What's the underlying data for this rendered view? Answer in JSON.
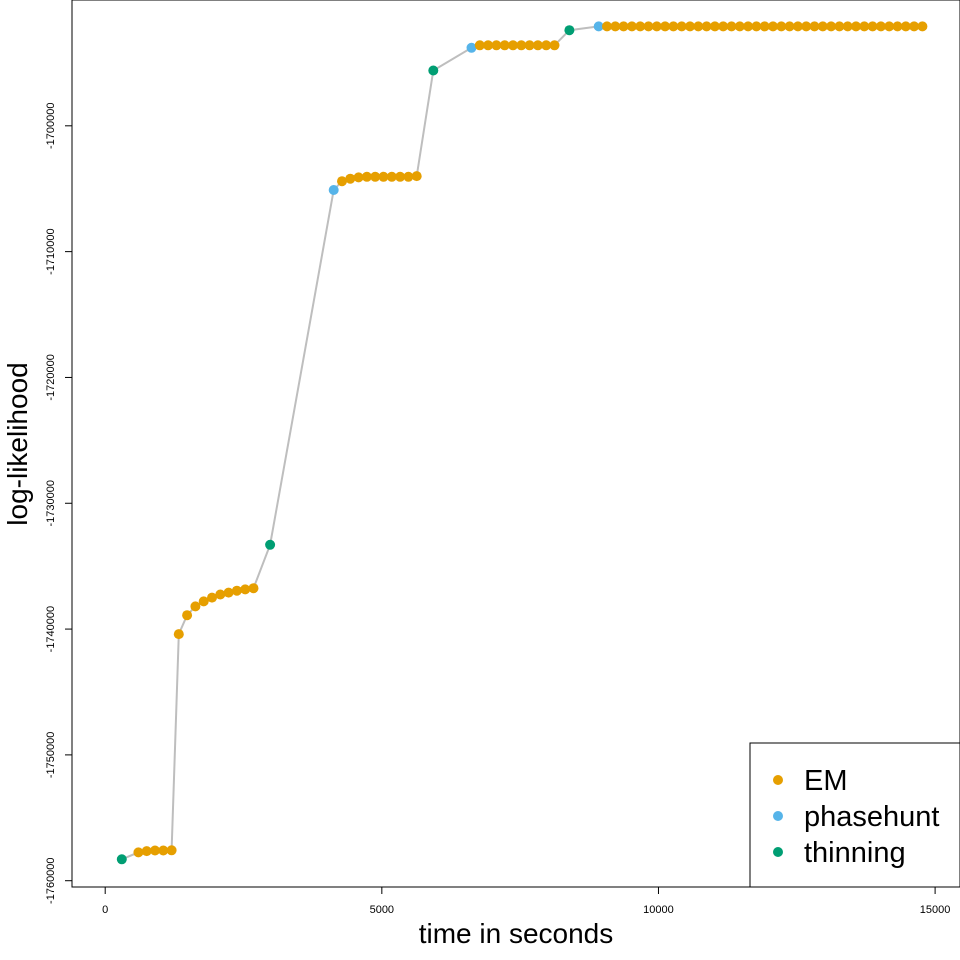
{
  "chart_data": {
    "type": "scatter",
    "xlabel": "time in seconds",
    "ylabel": "log-likelihood",
    "xlim": [
      -600,
      15450
    ],
    "ylim": [
      -1760500,
      -1690000
    ],
    "x_ticks": [
      0,
      5000,
      10000,
      15000
    ],
    "x_tick_labels": [
      "0",
      "5000",
      "10000",
      "15000"
    ],
    "y_ticks": [
      -1700000,
      -1710000,
      -1720000,
      -1730000,
      -1740000,
      -1750000,
      -1760000
    ],
    "y_tick_labels": [
      "-1700000",
      "-1710000",
      "-1720000",
      "-1730000",
      "-1740000",
      "-1750000",
      "-1760000"
    ],
    "grid": false,
    "legend_position": "bottom-right",
    "colors": {
      "EM": "#E69F00",
      "phasehunt": "#56B4E9",
      "thinning": "#009E73",
      "line": "#BEBEBE"
    },
    "legend": [
      {
        "name": "EM",
        "color": "#E69F00"
      },
      {
        "name": "phasehunt",
        "color": "#56B4E9"
      },
      {
        "name": "thinning",
        "color": "#009E73"
      }
    ],
    "points": [
      {
        "x": 300,
        "y": -1758300,
        "s": "thinning"
      },
      {
        "x": 600,
        "y": -1757750,
        "s": "EM"
      },
      {
        "x": 750,
        "y": -1757650,
        "s": "EM"
      },
      {
        "x": 900,
        "y": -1757600,
        "s": "EM"
      },
      {
        "x": 1050,
        "y": -1757600,
        "s": "EM"
      },
      {
        "x": 1200,
        "y": -1757580,
        "s": "EM"
      },
      {
        "x": 1330,
        "y": -1740400,
        "s": "EM"
      },
      {
        "x": 1480,
        "y": -1738900,
        "s": "EM"
      },
      {
        "x": 1630,
        "y": -1738200,
        "s": "EM"
      },
      {
        "x": 1780,
        "y": -1737800,
        "s": "EM"
      },
      {
        "x": 1930,
        "y": -1737500,
        "s": "EM"
      },
      {
        "x": 2080,
        "y": -1737250,
        "s": "EM"
      },
      {
        "x": 2230,
        "y": -1737100,
        "s": "EM"
      },
      {
        "x": 2380,
        "y": -1736950,
        "s": "EM"
      },
      {
        "x": 2530,
        "y": -1736850,
        "s": "EM"
      },
      {
        "x": 2680,
        "y": -1736750,
        "s": "EM"
      },
      {
        "x": 2980,
        "y": -1733300,
        "s": "thinning"
      },
      {
        "x": 4130,
        "y": -1705100,
        "s": "phasehunt"
      },
      {
        "x": 4280,
        "y": -1704400,
        "s": "EM"
      },
      {
        "x": 4430,
        "y": -1704200,
        "s": "EM"
      },
      {
        "x": 4580,
        "y": -1704100,
        "s": "EM"
      },
      {
        "x": 4730,
        "y": -1704050,
        "s": "EM"
      },
      {
        "x": 4880,
        "y": -1704050,
        "s": "EM"
      },
      {
        "x": 5030,
        "y": -1704050,
        "s": "EM"
      },
      {
        "x": 5180,
        "y": -1704050,
        "s": "EM"
      },
      {
        "x": 5330,
        "y": -1704050,
        "s": "EM"
      },
      {
        "x": 5480,
        "y": -1704050,
        "s": "EM"
      },
      {
        "x": 5630,
        "y": -1704000,
        "s": "EM"
      },
      {
        "x": 5930,
        "y": -1695600,
        "s": "thinning"
      },
      {
        "x": 6620,
        "y": -1693800,
        "s": "phasehunt"
      },
      {
        "x": 6770,
        "y": -1693600,
        "s": "EM"
      },
      {
        "x": 6920,
        "y": -1693600,
        "s": "EM"
      },
      {
        "x": 7070,
        "y": -1693600,
        "s": "EM"
      },
      {
        "x": 7220,
        "y": -1693600,
        "s": "EM"
      },
      {
        "x": 7370,
        "y": -1693600,
        "s": "EM"
      },
      {
        "x": 7520,
        "y": -1693600,
        "s": "EM"
      },
      {
        "x": 7670,
        "y": -1693600,
        "s": "EM"
      },
      {
        "x": 7820,
        "y": -1693600,
        "s": "EM"
      },
      {
        "x": 7970,
        "y": -1693600,
        "s": "EM"
      },
      {
        "x": 8120,
        "y": -1693600,
        "s": "EM"
      },
      {
        "x": 8390,
        "y": -1692400,
        "s": "thinning"
      },
      {
        "x": 8920,
        "y": -1692100,
        "s": "phasehunt"
      },
      {
        "x": 9070,
        "y": -1692100,
        "s": "EM"
      },
      {
        "x": 9220,
        "y": -1692100,
        "s": "EM"
      },
      {
        "x": 9370,
        "y": -1692100,
        "s": "EM"
      },
      {
        "x": 9520,
        "y": -1692100,
        "s": "EM"
      },
      {
        "x": 9670,
        "y": -1692100,
        "s": "EM"
      },
      {
        "x": 9820,
        "y": -1692100,
        "s": "EM"
      },
      {
        "x": 9970,
        "y": -1692100,
        "s": "EM"
      },
      {
        "x": 10120,
        "y": -1692100,
        "s": "EM"
      },
      {
        "x": 10270,
        "y": -1692100,
        "s": "EM"
      },
      {
        "x": 10420,
        "y": -1692100,
        "s": "EM"
      },
      {
        "x": 10570,
        "y": -1692100,
        "s": "EM"
      },
      {
        "x": 10720,
        "y": -1692100,
        "s": "EM"
      },
      {
        "x": 10870,
        "y": -1692100,
        "s": "EM"
      },
      {
        "x": 11020,
        "y": -1692100,
        "s": "EM"
      },
      {
        "x": 11170,
        "y": -1692100,
        "s": "EM"
      },
      {
        "x": 11320,
        "y": -1692100,
        "s": "EM"
      },
      {
        "x": 11470,
        "y": -1692100,
        "s": "EM"
      },
      {
        "x": 11620,
        "y": -1692100,
        "s": "EM"
      },
      {
        "x": 11770,
        "y": -1692100,
        "s": "EM"
      },
      {
        "x": 11920,
        "y": -1692100,
        "s": "EM"
      },
      {
        "x": 12070,
        "y": -1692100,
        "s": "EM"
      },
      {
        "x": 12220,
        "y": -1692100,
        "s": "EM"
      },
      {
        "x": 12370,
        "y": -1692100,
        "s": "EM"
      },
      {
        "x": 12520,
        "y": -1692100,
        "s": "EM"
      },
      {
        "x": 12670,
        "y": -1692100,
        "s": "EM"
      },
      {
        "x": 12820,
        "y": -1692100,
        "s": "EM"
      },
      {
        "x": 12970,
        "y": -1692100,
        "s": "EM"
      },
      {
        "x": 13120,
        "y": -1692100,
        "s": "EM"
      },
      {
        "x": 13270,
        "y": -1692100,
        "s": "EM"
      },
      {
        "x": 13420,
        "y": -1692100,
        "s": "EM"
      },
      {
        "x": 13570,
        "y": -1692100,
        "s": "EM"
      },
      {
        "x": 13720,
        "y": -1692100,
        "s": "EM"
      },
      {
        "x": 13870,
        "y": -1692100,
        "s": "EM"
      },
      {
        "x": 14020,
        "y": -1692100,
        "s": "EM"
      },
      {
        "x": 14170,
        "y": -1692100,
        "s": "EM"
      },
      {
        "x": 14320,
        "y": -1692100,
        "s": "EM"
      },
      {
        "x": 14470,
        "y": -1692100,
        "s": "EM"
      },
      {
        "x": 14620,
        "y": -1692100,
        "s": "EM"
      },
      {
        "x": 14770,
        "y": -1692100,
        "s": "EM"
      }
    ]
  }
}
